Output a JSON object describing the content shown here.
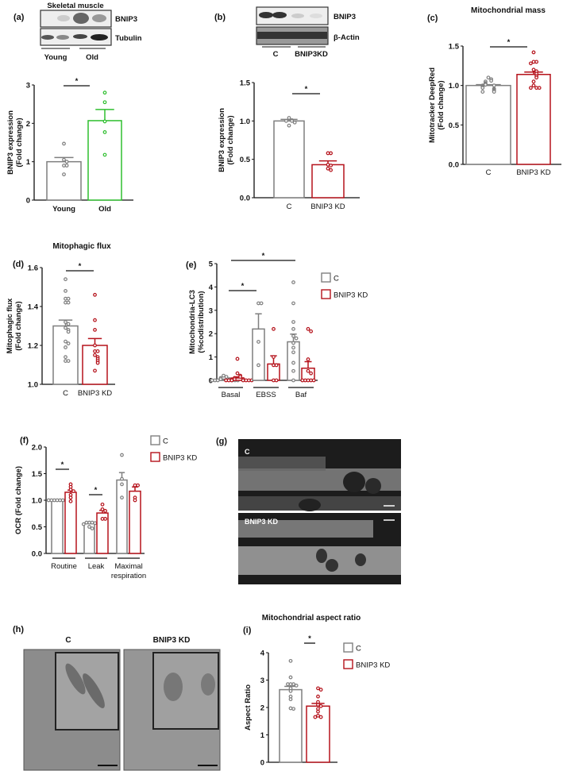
{
  "series_colors": {
    "Young": "#7f7f7f",
    "Old": "#2fbf2f",
    "C": "#7f7f7f",
    "BNIP3 KD": "#b5121b"
  },
  "panels": {
    "a": {
      "label": "(a)",
      "blot_title": "Skeletal muscle",
      "blot_rows": [
        "BNIP3",
        "Tubulin"
      ],
      "blot_groups": [
        "Young",
        "Old"
      ]
    },
    "b": {
      "label": "(b)",
      "blot_rows": [
        "BNIP3",
        "β-Actin"
      ],
      "blot_groups": [
        "C",
        "BNIP3KD"
      ]
    },
    "c": {
      "label": "(c)",
      "title": "Mitochondrial mass"
    },
    "d": {
      "label": "(d)",
      "title": "Mitophagic flux"
    },
    "e": {
      "label": "(e)"
    },
    "f": {
      "label": "(f)"
    },
    "g": {
      "label": "(g)",
      "images": [
        "C",
        "BNIP3 KD"
      ]
    },
    "h": {
      "label": "(h)",
      "images": [
        "C",
        "BNIP3 KD"
      ]
    },
    "i": {
      "label": "(i)",
      "title": "Mitochondrial aspect ratio"
    }
  },
  "legend": [
    "C",
    "BNIP3 KD"
  ],
  "chart_data": [
    {
      "id": "a",
      "type": "bar",
      "ylabel": [
        "BNIP3 expression",
        "(Fold change)"
      ],
      "ylim": [
        0,
        3
      ],
      "yticks": [
        "0",
        "1",
        "2",
        "3"
      ],
      "significance": "*",
      "groups": [
        {
          "label": "Young",
          "bars": [
            {
              "series": "Young",
              "mean": 1.0,
              "sem": 0.11,
              "points": [
                1.47,
                1.05,
                1.0,
                0.9,
                0.9,
                0.67
              ]
            }
          ]
        },
        {
          "label": "Old",
          "bars": [
            {
              "series": "Old",
              "mean": 2.07,
              "sem": 0.29,
              "points": [
                2.8,
                2.55,
                2.05,
                1.77,
                1.18
              ]
            }
          ]
        }
      ]
    },
    {
      "id": "b",
      "type": "bar",
      "ylabel": [
        "BNIP3 expression",
        "(Fold change)"
      ],
      "ylim": [
        0,
        1.5
      ],
      "yticks": [
        "0.0",
        "0.5",
        "1.0",
        "1.5"
      ],
      "significance": "*",
      "groups": [
        {
          "label": "C",
          "bars": [
            {
              "series": "C",
              "mean": 1.0,
              "sem": 0.02,
              "points": [
                1.04,
                1.01,
                1.0,
                1.0,
                0.98,
                0.94
              ]
            }
          ]
        },
        {
          "label": "BNIP3 KD",
          "bars": [
            {
              "series": "BNIP3 KD",
              "mean": 0.43,
              "sem": 0.05,
              "points": [
                0.58,
                0.58,
                0.43,
                0.42,
                0.38,
                0.36
              ]
            }
          ]
        }
      ]
    },
    {
      "id": "c",
      "type": "bar",
      "title": "Mitochondrial mass",
      "ylabel": [
        "Mitotracker DeepRed",
        "(Fold change)"
      ],
      "ylim": [
        0,
        1.5
      ],
      "yticks": [
        "0.0",
        "0.5",
        "1.0",
        "1.5"
      ],
      "significance": "*",
      "groups": [
        {
          "label": "C",
          "bars": [
            {
              "series": "C",
              "mean": 1.0,
              "sem": 0.01,
              "points": [
                1.1,
                1.08,
                1.06,
                1.05,
                1.03,
                1.02,
                1.01,
                1.0,
                1.0,
                0.99,
                0.98,
                0.97,
                0.96,
                0.95,
                0.94,
                0.93,
                0.92,
                0.92
              ]
            }
          ]
        },
        {
          "label": "BNIP3 KD",
          "bars": [
            {
              "series": "BNIP3 KD",
              "mean": 1.14,
              "sem": 0.03,
              "points": [
                1.42,
                1.3,
                1.3,
                1.28,
                1.2,
                1.18,
                1.15,
                1.12,
                1.1,
                1.05,
                1.0,
                0.97,
                0.97,
                0.97
              ]
            }
          ]
        }
      ]
    },
    {
      "id": "d",
      "type": "bar",
      "title": "Mitophagic flux",
      "ylabel": [
        "Mitophagic flux",
        "(Fold change)"
      ],
      "ylim": [
        1.0,
        1.6
      ],
      "yticks": [
        "1.0",
        "1.2",
        "1.4",
        "1.6"
      ],
      "significance": "*",
      "groups": [
        {
          "label": "C",
          "bars": [
            {
              "series": "C",
              "mean": 1.3,
              "sem": 0.03,
              "points": [
                1.54,
                1.48,
                1.44,
                1.44,
                1.42,
                1.42,
                1.32,
                1.31,
                1.29,
                1.28,
                1.27,
                1.22,
                1.21,
                1.19,
                1.14,
                1.12,
                1.12
              ]
            }
          ]
        },
        {
          "label": "BNIP3 KD",
          "bars": [
            {
              "series": "BNIP3 KD",
              "mean": 1.2,
              "sem": 0.035,
              "points": [
                1.46,
                1.33,
                1.28,
                1.2,
                1.17,
                1.17,
                1.15,
                1.14,
                1.13,
                1.12,
                1.11,
                1.07
              ]
            }
          ]
        }
      ]
    },
    {
      "id": "e",
      "type": "bar",
      "ylabel": [
        "Mitochondria-LC3",
        "(%codistribution)"
      ],
      "ylim": [
        0,
        5
      ],
      "yticks": [
        "0",
        "1",
        "2",
        "3",
        "4",
        "5"
      ],
      "significance": "*",
      "legend": [
        "C",
        "BNIP3 KD"
      ],
      "groups": [
        {
          "label": "Basal",
          "bars": [
            {
              "series": "C",
              "mean": 0.03,
              "sem": 0.02,
              "points": [
                0.2,
                0.15,
                0.1,
                0.05,
                0.05,
                0.02,
                0,
                0,
                0,
                0,
                0,
                0
              ]
            },
            {
              "series": "BNIP3 KD",
              "mean": 0.1,
              "sem": 0.05,
              "points": [
                0.92,
                0.3,
                0.2,
                0.15,
                0.1,
                0.05,
                0.05,
                0,
                0,
                0,
                0,
                0,
                0,
                0
              ]
            }
          ]
        },
        {
          "label": "EBSS",
          "bars": [
            {
              "series": "C",
              "mean": 2.2,
              "sem": 0.65,
              "points": [
                3.3,
                3.3,
                1.65,
                0.65
              ]
            },
            {
              "series": "BNIP3 KD",
              "mean": 0.7,
              "sem": 0.35,
              "points": [
                2.2,
                1.0,
                0.65,
                0.65,
                0,
                0
              ]
            }
          ]
        },
        {
          "label": "Baf",
          "bars": [
            {
              "series": "C",
              "mean": 1.65,
              "sem": 0.33,
              "points": [
                4.2,
                3.3,
                2.5,
                2.2,
                1.9,
                1.8,
                1.6,
                1.4,
                1.2,
                0.75,
                0.4,
                0
              ]
            },
            {
              "series": "BNIP3 KD",
              "mean": 0.52,
              "sem": 0.28,
              "points": [
                2.2,
                2.1,
                0.9,
                0.4,
                0.3,
                0,
                0,
                0,
                0,
                0
              ]
            }
          ]
        }
      ]
    },
    {
      "id": "f",
      "type": "bar",
      "ylabel": [
        "OCR (Fold change)"
      ],
      "ylim": [
        0,
        2.0
      ],
      "yticks": [
        "0.0",
        "0.5",
        "1.0",
        "1.5",
        "2.0"
      ],
      "significance": "*",
      "legend": [
        "C",
        "BNIP3 KD"
      ],
      "groups": [
        {
          "label": "Routine",
          "bars": [
            {
              "series": "C",
              "mean": 1.0,
              "sem": 0.0,
              "points": [
                1.0,
                1.0,
                1.0,
                1.0,
                1.0,
                1.0,
                1.0
              ]
            },
            {
              "series": "BNIP3 KD",
              "mean": 1.15,
              "sem": 0.04,
              "points": [
                1.3,
                1.25,
                1.2,
                1.17,
                1.1,
                1.05,
                0.98
              ]
            }
          ]
        },
        {
          "label": "Leak",
          "bars": [
            {
              "series": "C",
              "mean": 0.56,
              "sem": 0.02,
              "points": [
                0.58,
                0.58,
                0.58,
                0.57,
                0.55,
                0.5,
                0.47
              ]
            },
            {
              "series": "BNIP3 KD",
              "mean": 0.76,
              "sem": 0.05,
              "points": [
                0.92,
                0.83,
                0.8,
                0.65,
                0.65
              ]
            }
          ]
        },
        {
          "label": "Maximal",
          "label2": "respiration",
          "bars": [
            {
              "series": "C",
              "mean": 1.38,
              "sem": 0.14,
              "points": [
                1.85,
                1.4,
                1.3,
                1.05
              ]
            },
            {
              "series": "BNIP3 KD",
              "mean": 1.17,
              "sem": 0.08,
              "points": [
                1.28,
                1.28,
                1.05,
                1.0
              ]
            }
          ]
        }
      ]
    },
    {
      "id": "i",
      "type": "bar",
      "title": "Mitochondrial aspect ratio",
      "ylabel": [
        "Aspect Ratio"
      ],
      "ylim": [
        0,
        4
      ],
      "yticks": [
        "0",
        "1",
        "2",
        "3",
        "4"
      ],
      "significance": "*",
      "legend": [
        "C",
        "BNIP3 KD"
      ],
      "groups": [
        {
          "label": "",
          "bars": [
            {
              "series": "C",
              "mean": 2.65,
              "sem": 0.12,
              "points": [
                3.7,
                3.1,
                2.85,
                2.85,
                2.85,
                2.8,
                2.7,
                2.6,
                2.4,
                2.3,
                1.97,
                1.95
              ]
            },
            {
              "series": "BNIP3 KD",
              "mean": 2.05,
              "sem": 0.1,
              "points": [
                2.7,
                2.65,
                2.4,
                2.2,
                2.1,
                2.05,
                1.95,
                1.85,
                1.7,
                1.65,
                1.65
              ]
            }
          ]
        }
      ]
    }
  ]
}
